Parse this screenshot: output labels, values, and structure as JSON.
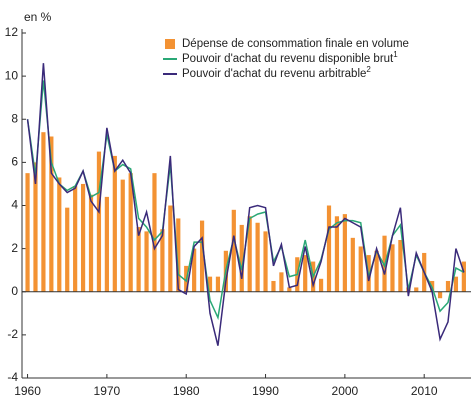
{
  "chart_data": {
    "type": "combo",
    "unit_label": "en %",
    "x": [
      1960,
      1961,
      1962,
      1963,
      1964,
      1965,
      1966,
      1967,
      1968,
      1969,
      1970,
      1971,
      1972,
      1973,
      1974,
      1975,
      1976,
      1977,
      1978,
      1979,
      1980,
      1981,
      1982,
      1983,
      1984,
      1985,
      1986,
      1987,
      1988,
      1989,
      1990,
      1991,
      1992,
      1993,
      1994,
      1995,
      1996,
      1997,
      1998,
      1999,
      2000,
      2001,
      2002,
      2003,
      2004,
      2005,
      2006,
      2007,
      2008,
      2009,
      2010,
      2011,
      2012,
      2013,
      2014,
      2015
    ],
    "series": [
      {
        "name": "Dépense de consommation finale en volume",
        "kind": "bar",
        "color": "#f39233",
        "values": [
          5.5,
          6.0,
          7.4,
          7.2,
          5.3,
          3.9,
          4.9,
          5.0,
          4.5,
          6.5,
          4.4,
          6.3,
          5.2,
          5.5,
          3.0,
          2.8,
          5.5,
          2.9,
          4.0,
          3.4,
          1.2,
          2.0,
          3.3,
          0.7,
          0.7,
          1.9,
          3.8,
          3.1,
          3.5,
          3.2,
          2.8,
          0.5,
          0.9,
          0.2,
          1.6,
          1.7,
          1.4,
          0.6,
          4.0,
          3.5,
          3.6,
          2.5,
          2.1,
          1.7,
          1.9,
          2.6,
          2.2,
          2.4,
          0.2,
          0.2,
          1.8,
          0.5,
          -0.3,
          0.5,
          0.7,
          1.4
        ]
      },
      {
        "name": "Pouvoir d'achat du revenu disponible brut",
        "note": "1",
        "kind": "line",
        "color": "#2aa876",
        "values": [
          8.0,
          5.4,
          9.8,
          6.0,
          5.0,
          4.7,
          4.9,
          5.6,
          4.4,
          4.6,
          7.3,
          5.6,
          5.9,
          5.7,
          3.4,
          3.0,
          2.4,
          2.8,
          5.9,
          0.8,
          0.5,
          2.3,
          2.3,
          -0.4,
          -1.2,
          1.0,
          2.5,
          1.0,
          3.4,
          3.6,
          3.7,
          1.4,
          2.1,
          0.7,
          0.8,
          2.4,
          0.7,
          1.5,
          2.9,
          3.2,
          3.3,
          3.3,
          3.2,
          0.7,
          1.9,
          1.2,
          2.6,
          3.1,
          0.1,
          1.7,
          0.9,
          0.2,
          -0.9,
          -0.5,
          1.1,
          0.9
        ]
      },
      {
        "name": "Pouvoir d'achat du revenu arbitrable",
        "note": "2",
        "kind": "line",
        "color": "#3a2a7a",
        "values": [
          8.0,
          5.0,
          10.6,
          5.5,
          5.0,
          4.6,
          4.8,
          5.6,
          4.2,
          3.7,
          7.6,
          5.6,
          6.1,
          5.5,
          2.6,
          3.7,
          2.0,
          2.6,
          6.3,
          0.1,
          -0.1,
          2.1,
          2.5,
          -1.0,
          -2.5,
          0.5,
          2.6,
          0.6,
          3.9,
          4.0,
          3.9,
          1.2,
          2.2,
          0.2,
          0.3,
          2.1,
          0.3,
          1.4,
          3.0,
          3.0,
          3.4,
          3.2,
          3.0,
          0.5,
          2.0,
          0.8,
          2.6,
          3.9,
          -0.2,
          1.8,
          0.9,
          0.0,
          -2.2,
          -1.4,
          2.0,
          0.9
        ]
      }
    ],
    "xlim": [
      1959.3,
      2015.9
    ],
    "xticks": [
      1960,
      1970,
      1980,
      1990,
      2000,
      2010
    ],
    "ylim": [
      -4,
      12
    ],
    "yticks": [
      -4,
      -2,
      0,
      2,
      4,
      6,
      8,
      10,
      12
    ]
  }
}
